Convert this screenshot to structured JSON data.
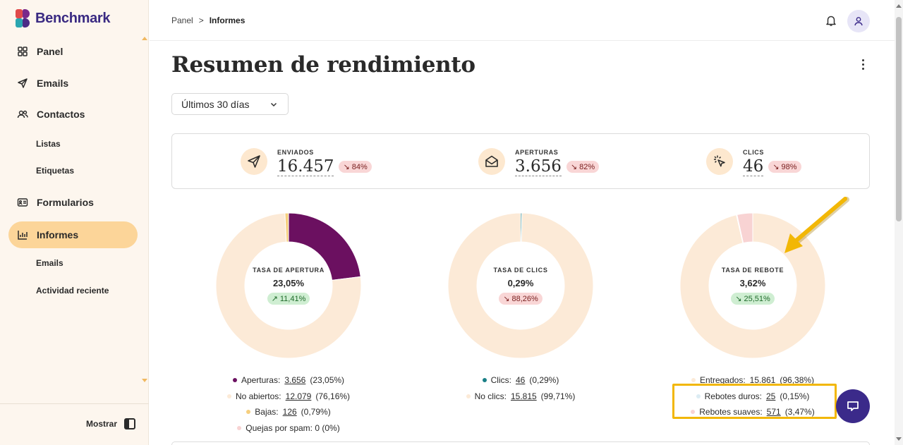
{
  "app": {
    "name": "Benchmark"
  },
  "sidebar": {
    "items": [
      {
        "label": "Panel"
      },
      {
        "label": "Emails"
      },
      {
        "label": "Contactos"
      },
      {
        "label": "Listas"
      },
      {
        "label": "Etiquetas"
      },
      {
        "label": "Formularios"
      },
      {
        "label": "Informes"
      },
      {
        "label": "Emails"
      },
      {
        "label": "Actividad reciente"
      }
    ],
    "footer_label": "Mostrar"
  },
  "breadcrumb": {
    "parent": "Panel",
    "separator": ">",
    "current": "Informes"
  },
  "page": {
    "title": "Resumen de rendimiento",
    "range_value": "Últimos 30 días"
  },
  "stats": [
    {
      "label": "ENVIADOS",
      "value": "16.457",
      "change": "84%",
      "icon": "send-icon"
    },
    {
      "label": "APERTURAS",
      "value": "3.656",
      "change": "82%",
      "icon": "envelope-open-icon"
    },
    {
      "label": "CLICS",
      "value": "46",
      "change": "98%",
      "icon": "cursor-click-icon"
    }
  ],
  "donuts": [
    {
      "label": "TASA DE APERTURA",
      "value": "23,05%",
      "change": "11,41%",
      "trend": "up",
      "legend": [
        {
          "name": "Aperturas:",
          "count": "3.656",
          "pct": "(23,05%)",
          "color": "#6b1060"
        },
        {
          "name": "No abiertos:",
          "count": "12.079",
          "pct": "(76,16%)",
          "color": "#fcead7"
        },
        {
          "name": "Bajas:",
          "count": "126",
          "pct": "(0,79%)",
          "color": "#f6cf7e"
        },
        {
          "name": "Quejas por spam: 0 (0%)",
          "count": "",
          "pct": "",
          "color": "#f8d3d3"
        }
      ]
    },
    {
      "label": "TASA DE CLICS",
      "value": "0,29%",
      "change": "88,26%",
      "trend": "down",
      "legend": [
        {
          "name": "Clics:",
          "count": "46",
          "pct": "(0,29%)",
          "color": "#1a7f86"
        },
        {
          "name": "No clics:",
          "count": "15.815",
          "pct": "(99,71%)",
          "color": "#fcead7"
        }
      ]
    },
    {
      "label": "TASA DE REBOTE",
      "value": "3,62%",
      "change": "25,51%",
      "trend": "down",
      "legend": [
        {
          "name": "Entregados:",
          "count": "15.861",
          "pct": "(96,38%)",
          "color": "#fcead7"
        },
        {
          "name": "Rebotes duros:",
          "count": "25",
          "pct": "(0,15%)",
          "color": "#dcecf3"
        },
        {
          "name": "Rebotes suaves:",
          "count": "571",
          "pct": "(3,47%)",
          "color": "#f8d3d3"
        }
      ]
    }
  ],
  "chart_data": [
    {
      "type": "pie",
      "title": "TASA DE APERTURA",
      "categories": [
        "Aperturas",
        "No abiertos",
        "Bajas",
        "Quejas por spam"
      ],
      "values": [
        23.05,
        76.16,
        0.79,
        0
      ],
      "colors": [
        "#6b1060",
        "#fcead7",
        "#f6cf7e",
        "#f8d3d3"
      ]
    },
    {
      "type": "pie",
      "title": "TASA DE CLICS",
      "categories": [
        "Clics",
        "No clics"
      ],
      "values": [
        0.29,
        99.71
      ],
      "colors": [
        "#1a7f86",
        "#fcead7"
      ]
    },
    {
      "type": "pie",
      "title": "TASA DE REBOTE",
      "categories": [
        "Entregados",
        "Rebotes duros",
        "Rebotes suaves"
      ],
      "values": [
        96.38,
        0.15,
        3.47
      ],
      "colors": [
        "#fcead7",
        "#dcecf3",
        "#f8d3d3"
      ]
    }
  ]
}
